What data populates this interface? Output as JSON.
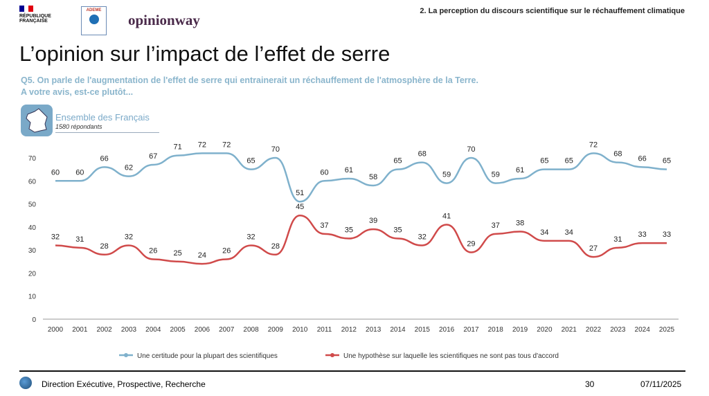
{
  "header": {
    "section": "2. La perception du discours scientifique sur le réchauffement climatique",
    "logos": [
      "RÉPUBLIQUE FRANÇAISE",
      "ADEME",
      "opinionway"
    ]
  },
  "title": "L’opinion sur l’impact de l’effet de serre",
  "question": [
    "Q5. On parle de l'augmentation de l'effet de serre qui entrainerait un réchauffement de l'atmosphère de la Terre.",
    "A votre avis, est-ce plutôt..."
  ],
  "population": {
    "label": "Ensemble des Français",
    "respondents": "1580 répondants"
  },
  "chart_data": {
    "type": "line",
    "x": [
      2000,
      2001,
      2002,
      2003,
      2004,
      2005,
      2006,
      2007,
      2008,
      2009,
      2010,
      2011,
      2012,
      2013,
      2014,
      2015,
      2016,
      2017,
      2018,
      2019,
      2020,
      2021,
      2022,
      2023,
      2024,
      2025
    ],
    "ylim": [
      0,
      70
    ],
    "yticks": [
      0,
      10,
      20,
      30,
      40,
      50,
      60,
      70
    ],
    "grid": false,
    "legend": "bottom",
    "series": [
      {
        "name": "Une certitude pour la plupart des scientifiques",
        "color": "#7fb1cc",
        "values": [
          60,
          60,
          66,
          62,
          67,
          71,
          72,
          72,
          65,
          70,
          51,
          60,
          61,
          58,
          65,
          68,
          59,
          70,
          59,
          61,
          65,
          65,
          72,
          68,
          66,
          65
        ]
      },
      {
        "name": "Une hypothèse sur laquelle les scientifiques ne sont pas tous d'accord",
        "color": "#d04a4a",
        "values": [
          32,
          31,
          28,
          32,
          26,
          25,
          24,
          26,
          32,
          28,
          45,
          37,
          35,
          39,
          35,
          32,
          41,
          29,
          37,
          38,
          34,
          34,
          27,
          31,
          33,
          33
        ]
      }
    ]
  },
  "footer": {
    "dept": "Direction Exécutive, Prospective, Recherche",
    "page": "30",
    "date": "07/11/2025"
  }
}
